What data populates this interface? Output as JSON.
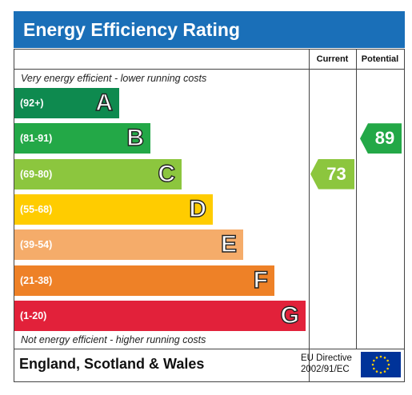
{
  "title": "Energy Efficiency Rating",
  "columns": {
    "current": "Current",
    "potential": "Potential"
  },
  "top_note": "Very energy efficient - lower running costs",
  "bottom_note": "Not energy efficient - higher running costs",
  "bands": [
    {
      "range": "(92+)",
      "letter": "A",
      "color": "#0e8a4f"
    },
    {
      "range": "(81-91)",
      "letter": "B",
      "color": "#23a847"
    },
    {
      "range": "(69-80)",
      "letter": "C",
      "color": "#8cc63e"
    },
    {
      "range": "(55-68)",
      "letter": "D",
      "color": "#ffcc00"
    },
    {
      "range": "(39-54)",
      "letter": "E",
      "color": "#f5ac6a"
    },
    {
      "range": "(21-38)",
      "letter": "F",
      "color": "#ee8127"
    },
    {
      "range": "(1-20)",
      "letter": "G",
      "color": "#e2213a"
    }
  ],
  "current": {
    "value": "73",
    "band": "C",
    "color": "#8cc63e"
  },
  "potential": {
    "value": "89",
    "band": "B",
    "color": "#23a847"
  },
  "footer": {
    "region": "England, Scotland & Wales",
    "directive_line1": "EU Directive",
    "directive_line2": "2002/91/EC"
  },
  "icons": {
    "eu_flag": "eu-flag-icon"
  }
}
